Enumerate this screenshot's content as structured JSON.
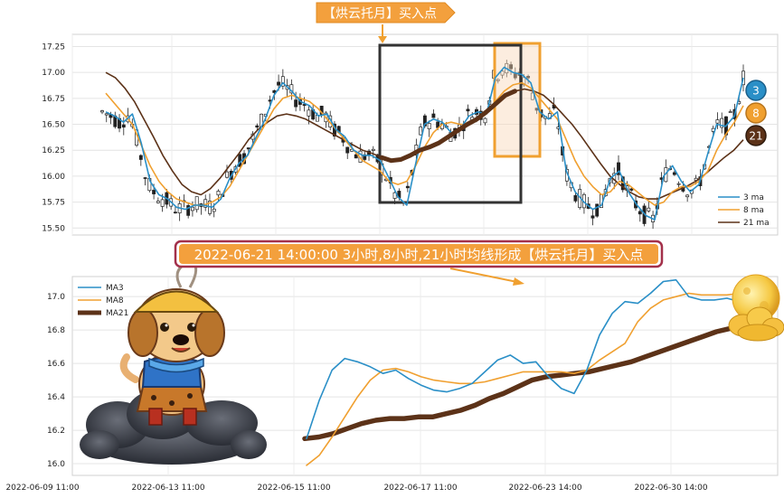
{
  "annotations": {
    "top_banner": "【烘云托月】买入点",
    "mid_banner": "2022-06-21 14:00:00 3小时,8小时,21小时均线形成【烘云托月】买入点"
  },
  "colors": {
    "ma3": "#2a8fc7",
    "ma8": "#f0a030",
    "ma21": "#5c3218",
    "candle": "#222222",
    "banner_bg": "#f3a03d",
    "banner_text": "#ffffff",
    "mid_banner_bg": "#a3304a",
    "mid_banner_text": "#ffd27a",
    "box_dark": "#333333",
    "box_orange": "#f0a030"
  },
  "chart_data": [
    {
      "type": "candlestick",
      "title": "",
      "ylim": [
        15.45,
        17.35
      ],
      "yticks": [
        15.5,
        15.75,
        16.0,
        16.25,
        16.5,
        16.75,
        17.0,
        17.25
      ],
      "legend": {
        "placement": "bottom-right",
        "entries": [
          "3 ma",
          "8 ma",
          "21 ma"
        ]
      },
      "end_markers": [
        "3",
        "8",
        "21"
      ],
      "grid": true,
      "series": [
        {
          "name": "3 ma",
          "values": [
            16.62,
            16.58,
            16.52,
            16.6,
            16.32,
            15.95,
            15.82,
            15.78,
            15.7,
            15.68,
            15.72,
            15.72,
            15.7,
            15.78,
            15.98,
            16.12,
            16.2,
            16.38,
            16.55,
            16.78,
            16.9,
            16.82,
            16.72,
            16.68,
            16.58,
            16.6,
            16.45,
            16.38,
            16.25,
            16.2,
            16.2,
            16.15,
            15.98,
            15.8,
            15.72,
            16.12,
            16.5,
            16.55,
            16.52,
            16.42,
            16.45,
            16.58,
            16.62,
            16.6,
            16.95,
            17.05,
            17.0,
            16.98,
            16.9,
            16.62,
            16.55,
            16.62,
            16.05,
            15.85,
            15.75,
            15.68,
            15.72,
            15.98,
            16.05,
            15.85,
            15.72,
            15.62,
            15.58,
            16.0,
            16.1,
            15.95,
            15.85,
            15.92,
            16.22,
            16.5,
            16.48,
            16.58,
            16.95
          ]
        },
        {
          "name": "8 ma",
          "values": [
            16.8,
            16.7,
            16.6,
            16.5,
            16.3,
            16.1,
            15.95,
            15.85,
            15.78,
            15.75,
            15.72,
            15.72,
            15.75,
            15.8,
            15.9,
            16.05,
            16.2,
            16.35,
            16.5,
            16.65,
            16.75,
            16.78,
            16.75,
            16.72,
            16.65,
            16.55,
            16.45,
            16.35,
            16.25,
            16.15,
            16.1,
            16.05,
            15.95,
            15.92,
            15.95,
            16.1,
            16.28,
            16.42,
            16.5,
            16.52,
            16.5,
            16.5,
            16.55,
            16.6,
            16.72,
            16.82,
            16.88,
            16.9,
            16.85,
            16.75,
            16.65,
            16.55,
            16.35,
            16.15,
            16.0,
            15.9,
            15.82,
            15.85,
            15.95,
            15.92,
            15.85,
            15.78,
            15.72,
            15.75,
            15.85,
            15.9,
            15.9,
            15.95,
            16.05,
            16.25,
            16.4,
            16.52,
            16.68
          ]
        },
        {
          "name": "21 ma",
          "values": [
            17.0,
            16.95,
            16.85,
            16.72,
            16.55,
            16.38,
            16.2,
            16.05,
            15.92,
            15.85,
            15.82,
            15.88,
            15.98,
            16.1,
            16.22,
            16.35,
            16.45,
            16.52,
            16.58,
            16.6,
            16.58,
            16.55,
            16.5,
            16.45,
            16.4,
            16.35,
            16.3,
            16.25,
            16.22,
            16.18,
            16.15,
            16.16,
            16.2,
            16.25,
            16.28,
            16.32,
            16.38,
            16.44,
            16.5,
            16.55,
            16.62,
            16.7,
            16.78,
            16.82,
            16.84,
            16.82,
            16.78,
            16.7,
            16.6,
            16.5,
            16.38,
            16.25,
            16.12,
            16.0,
            15.92,
            15.85,
            15.8,
            15.78,
            15.78,
            15.82,
            15.86,
            15.9,
            15.95,
            16.02,
            16.1,
            16.18,
            16.25,
            16.35
          ]
        }
      ]
    },
    {
      "type": "line",
      "title": "",
      "x_tick_labels": [
        "2022-06-09 11:00",
        "2022-06-13 11:00",
        "2022-06-15 11:00",
        "2022-06-17 11:00",
        "2022-06-23 14:00",
        "2022-06-30 14:00"
      ],
      "ylim": [
        15.93,
        17.12
      ],
      "yticks": [
        16.0,
        16.2,
        16.4,
        16.6,
        16.8,
        17.0
      ],
      "legend": {
        "placement": "top-left",
        "entries": [
          "MA3",
          "MA8",
          "MA21"
        ]
      },
      "grid": true,
      "series": [
        {
          "name": "MA3",
          "values": [
            16.15,
            16.38,
            16.56,
            16.63,
            16.61,
            16.58,
            16.54,
            16.56,
            16.51,
            16.47,
            16.44,
            16.43,
            16.45,
            16.48,
            16.55,
            16.62,
            16.65,
            16.6,
            16.61,
            16.52,
            16.45,
            16.42,
            16.56,
            16.77,
            16.9,
            16.97,
            16.96,
            17.02,
            17.09,
            17.1,
            17.0,
            16.98,
            16.98,
            16.99,
            16.97
          ]
        },
        {
          "name": "MA8",
          "values": [
            15.99,
            16.05,
            16.16,
            16.28,
            16.4,
            16.5,
            16.56,
            16.57,
            16.55,
            16.52,
            16.5,
            16.49,
            16.48,
            16.48,
            16.49,
            16.51,
            16.53,
            16.55,
            16.55,
            16.55,
            16.55,
            16.54,
            16.56,
            16.62,
            16.67,
            16.72,
            16.85,
            16.93,
            16.98,
            17.0,
            17.02,
            17.01,
            17.01,
            17.01,
            17.02
          ]
        },
        {
          "name": "MA21",
          "values": [
            16.15,
            16.16,
            16.18,
            16.21,
            16.24,
            16.26,
            16.27,
            16.27,
            16.28,
            16.28,
            16.3,
            16.32,
            16.35,
            16.39,
            16.42,
            16.46,
            16.5,
            16.52,
            16.53,
            16.54,
            16.55,
            16.57,
            16.59,
            16.61,
            16.64,
            16.67,
            16.7,
            16.73,
            16.76,
            16.79,
            16.81
          ]
        }
      ]
    }
  ]
}
